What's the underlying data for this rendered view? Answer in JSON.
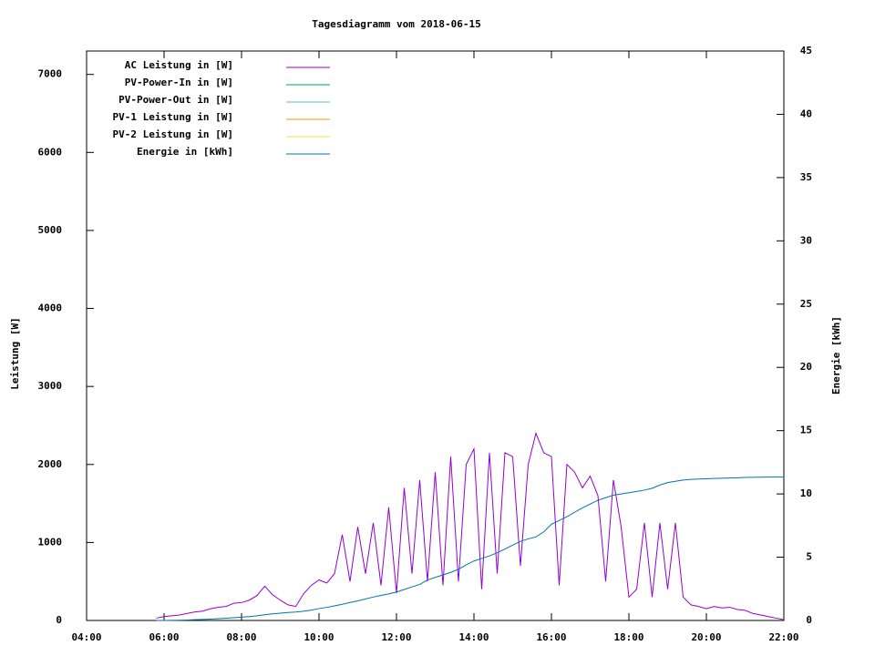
{
  "chart_data": {
    "type": "line",
    "title": "Tagesdiagramm vom 2018-06-15",
    "y_label": "Leistung [W]",
    "y2_label": "Energie [kWh]",
    "x": [
      5.8,
      6,
      6.2,
      6.4,
      6.6,
      6.8,
      7,
      7.2,
      7.4,
      7.6,
      7.8,
      8,
      8.2,
      8.4,
      8.6,
      8.8,
      9,
      9.2,
      9.4,
      9.6,
      9.8,
      10,
      10.2,
      10.4,
      10.6,
      10.8,
      11,
      11.2,
      11.4,
      11.6,
      11.8,
      12,
      12.2,
      12.4,
      12.6,
      12.8,
      13,
      13.2,
      13.4,
      13.6,
      13.8,
      14,
      14.2,
      14.4,
      14.6,
      14.8,
      15,
      15.2,
      15.4,
      15.6,
      15.8,
      16,
      16.2,
      16.4,
      16.6,
      16.8,
      17,
      17.2,
      17.4,
      17.6,
      17.8,
      18,
      18.2,
      18.4,
      18.6,
      18.8,
      19,
      19.2,
      19.4,
      19.6,
      19.8,
      20,
      20.2,
      20.4,
      20.6,
      20.8,
      21,
      21.2,
      21.4,
      21.6,
      21.8,
      22
    ],
    "series": [
      {
        "name": "AC Leistung in [W]",
        "color": "#9400d3",
        "values": [
          30,
          50,
          60,
          70,
          90,
          110,
          120,
          150,
          170,
          180,
          220,
          230,
          260,
          320,
          440,
          330,
          260,
          200,
          180,
          340,
          450,
          520,
          480,
          600,
          1100,
          500,
          1200,
          600,
          1250,
          450,
          1450,
          350,
          1700,
          600,
          1800,
          500,
          1900,
          450,
          2100,
          500,
          2000,
          2200,
          400,
          2150,
          600,
          2150,
          2100,
          700,
          2000,
          2400,
          2150,
          2100,
          450,
          2000,
          1900,
          1700,
          1850,
          1600,
          500,
          1800,
          1200,
          300,
          400,
          1250,
          300,
          1250,
          400,
          1250,
          300,
          200,
          180,
          150,
          180,
          160,
          170,
          140,
          130,
          90,
          70,
          50,
          30,
          10
        ]
      },
      {
        "name": "PV-Power-In in [W]",
        "color": "#009e73",
        "values": [
          null,
          null,
          null,
          null,
          null,
          null,
          null,
          null,
          null,
          null,
          null,
          null,
          null,
          null,
          null,
          null,
          null,
          null,
          null,
          null,
          null,
          null,
          null,
          null,
          null,
          null,
          null,
          null,
          null,
          null,
          null,
          null,
          null,
          null,
          null,
          null,
          null,
          null,
          null,
          null,
          null,
          null,
          null,
          null,
          null,
          null,
          null,
          null,
          null,
          null,
          null,
          null,
          null,
          null,
          null,
          null,
          null,
          null,
          null,
          null,
          null,
          null,
          null,
          null,
          null,
          null,
          null,
          null,
          null,
          null,
          null,
          null,
          null,
          null,
          null,
          null,
          null,
          null,
          null,
          null,
          null,
          null
        ]
      },
      {
        "name": "PV-Power-Out in [W]",
        "color": "#56b4e9",
        "values": [
          null,
          null,
          null,
          null,
          null,
          null,
          null,
          null,
          null,
          null,
          null,
          null,
          null,
          null,
          null,
          null,
          null,
          null,
          null,
          null,
          null,
          null,
          null,
          null,
          null,
          null,
          null,
          null,
          null,
          null,
          null,
          null,
          null,
          null,
          null,
          null,
          null,
          null,
          null,
          null,
          null,
          null,
          null,
          null,
          null,
          null,
          null,
          null,
          null,
          null,
          null,
          null,
          null,
          null,
          null,
          null,
          null,
          null,
          null,
          null,
          null,
          null,
          null,
          null,
          null,
          null,
          null,
          null,
          null,
          null,
          null,
          null,
          null,
          null,
          null,
          null,
          null,
          null,
          null,
          null,
          null,
          null
        ]
      },
      {
        "name": "PV-1 Leistung in [W]",
        "color": "#e69f00",
        "values": [
          null,
          null,
          null,
          null,
          null,
          null,
          null,
          null,
          null,
          null,
          null,
          null,
          null,
          null,
          null,
          null,
          null,
          null,
          null,
          null,
          null,
          null,
          null,
          null,
          null,
          null,
          null,
          null,
          null,
          null,
          null,
          null,
          null,
          null,
          null,
          null,
          null,
          null,
          null,
          null,
          null,
          null,
          null,
          null,
          null,
          null,
          null,
          null,
          null,
          null,
          null,
          null,
          null,
          null,
          null,
          null,
          null,
          null,
          null,
          null,
          null,
          null,
          null,
          null,
          null,
          null,
          null,
          null,
          null,
          null,
          null,
          null,
          null,
          null,
          null,
          null,
          null,
          null,
          null,
          null,
          null,
          null
        ]
      },
      {
        "name": "PV-2 Leistung in [W]",
        "color": "#f0e442",
        "values": [
          null,
          null,
          null,
          null,
          null,
          null,
          null,
          null,
          null,
          null,
          null,
          null,
          null,
          null,
          null,
          null,
          null,
          null,
          null,
          null,
          null,
          null,
          null,
          null,
          null,
          null,
          null,
          null,
          null,
          null,
          null,
          null,
          null,
          null,
          null,
          null,
          null,
          null,
          null,
          null,
          null,
          null,
          null,
          null,
          null,
          null,
          null,
          null,
          null,
          null,
          null,
          null,
          null,
          null,
          null,
          null,
          null,
          null,
          null,
          null,
          null,
          null,
          null,
          null,
          null,
          null,
          null,
          null,
          null,
          null,
          null,
          null,
          null,
          null,
          null,
          null,
          null,
          null,
          null,
          null,
          null,
          null
        ]
      },
      {
        "name": "Energie in [kWh]",
        "color": "#0072b2",
        "axis": "y2",
        "values": [
          0,
          0,
          0.01,
          0.02,
          0.04,
          0.06,
          0.08,
          0.11,
          0.14,
          0.18,
          0.22,
          0.26,
          0.31,
          0.37,
          0.45,
          0.52,
          0.58,
          0.63,
          0.67,
          0.73,
          0.82,
          0.94,
          1.03,
          1.15,
          1.28,
          1.42,
          1.55,
          1.7,
          1.85,
          1.98,
          2.1,
          2.25,
          2.45,
          2.65,
          2.85,
          3.2,
          3.4,
          3.6,
          3.8,
          4.05,
          4.4,
          4.7,
          4.9,
          5.1,
          5.35,
          5.65,
          5.95,
          6.25,
          6.45,
          6.6,
          7,
          7.6,
          7.9,
          8.2,
          8.55,
          8.9,
          9.2,
          9.5,
          9.7,
          9.9,
          10,
          10.1,
          10.2,
          10.3,
          10.45,
          10.7,
          10.9,
          11,
          11.1,
          11.15,
          11.18,
          11.2,
          11.22,
          11.24,
          11.26,
          11.28,
          11.3,
          11.31,
          11.32,
          11.33,
          11.33,
          11.33
        ]
      }
    ],
    "xlim": [
      4,
      22
    ],
    "xticks": [
      {
        "value": 4,
        "label": "04:00"
      },
      {
        "value": 6,
        "label": "06:00"
      },
      {
        "value": 8,
        "label": "08:00"
      },
      {
        "value": 10,
        "label": "10:00"
      },
      {
        "value": 12,
        "label": "12:00"
      },
      {
        "value": 14,
        "label": "14:00"
      },
      {
        "value": 16,
        "label": "16:00"
      },
      {
        "value": 18,
        "label": "18:00"
      },
      {
        "value": 20,
        "label": "20:00"
      },
      {
        "value": 22,
        "label": "22:00"
      }
    ],
    "ylim": [
      0,
      7300
    ],
    "yticks": [
      0,
      1000,
      2000,
      3000,
      4000,
      5000,
      6000,
      7000
    ],
    "y2lim": [
      0,
      45
    ],
    "y2ticks": [
      0,
      5,
      10,
      15,
      20,
      25,
      30,
      35,
      40,
      45
    ],
    "legend": "top-left"
  }
}
